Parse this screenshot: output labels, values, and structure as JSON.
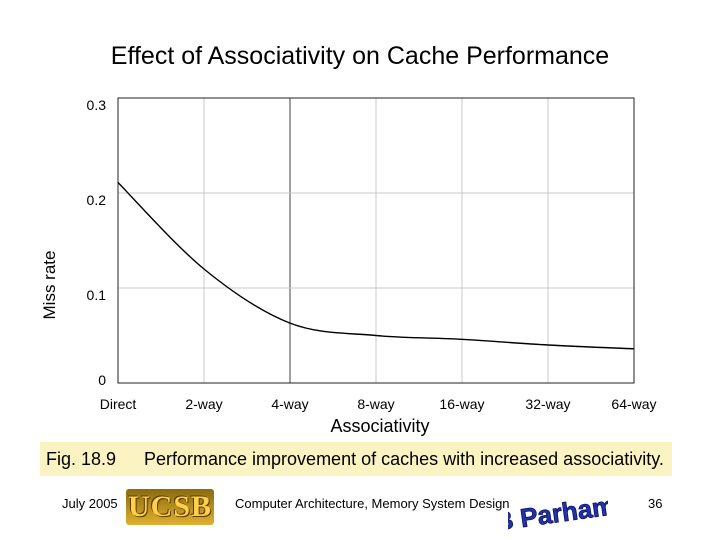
{
  "title": "Effect of Associativity on Cache Performance",
  "chart_data": {
    "type": "line",
    "title": "Effect of Associativity on Cache Performance",
    "xlabel": "Associativity",
    "ylabel": "Miss rate",
    "categories": [
      "Direct",
      "2-way",
      "4-way",
      "8-way",
      "16-way",
      "32-way",
      "64-way"
    ],
    "yticks": [
      0,
      0.1,
      0.2,
      0.3
    ],
    "ytick_labels": [
      "0",
      "0.1",
      "0.2",
      "0.3"
    ],
    "ylim": [
      0,
      0.3
    ],
    "grid": true,
    "series": [
      {
        "name": "Miss rate",
        "values": [
          0.211,
          0.12,
          0.063,
          0.05,
          0.046,
          0.04,
          0.036
        ]
      }
    ]
  },
  "caption": {
    "figure": "Fig. 18.9",
    "text": "Performance improvement of caches with increased associativity."
  },
  "footer": {
    "date": "July 2005",
    "logo": "UCSB",
    "course": "Computer Architecture, Memory System Design",
    "author_signature": "B Parhami",
    "page": "36"
  }
}
